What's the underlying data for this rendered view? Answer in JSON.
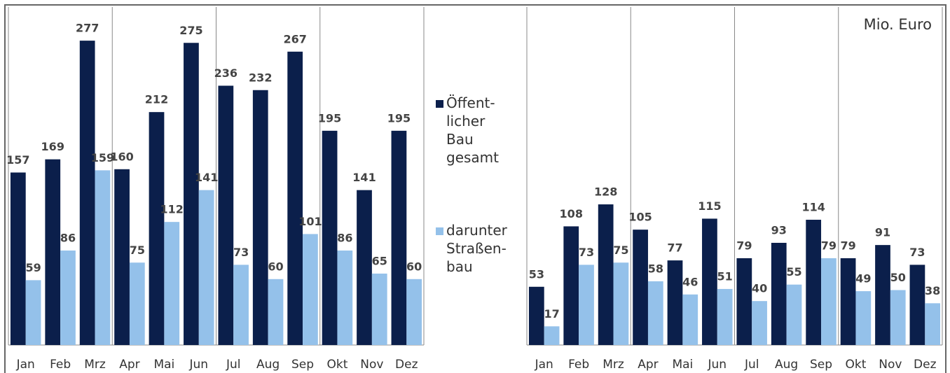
{
  "chart_data": [
    {
      "type": "bar",
      "categories": [
        "Jan",
        "Feb",
        "Mrz",
        "Apr",
        "Mai",
        "Jun",
        "Jul",
        "Aug",
        "Sep",
        "Okt",
        "Nov",
        "Dez"
      ],
      "series": [
        {
          "name": "Öffent-licher Bau gesamt",
          "color": "#0b1f4b",
          "values": [
            157,
            169,
            277,
            160,
            212,
            275,
            236,
            232,
            267,
            195,
            141,
            195
          ]
        },
        {
          "name": "darunter Straßen-bau",
          "color": "#94c1ea",
          "values": [
            59,
            86,
            159,
            75,
            112,
            141,
            73,
            60,
            101,
            86,
            65,
            60
          ]
        }
      ],
      "ylim": [
        0,
        300
      ]
    },
    {
      "type": "bar",
      "unit": "Mio. Euro",
      "categories": [
        "Jan",
        "Feb",
        "Mrz",
        "Apr",
        "Mai",
        "Jun",
        "Jul",
        "Aug",
        "Sep",
        "Okt",
        "Nov",
        "Dez"
      ],
      "series": [
        {
          "color": "#0b1f4b",
          "values": [
            53,
            108,
            128,
            105,
            77,
            115,
            79,
            93,
            114,
            79,
            91,
            73
          ]
        },
        {
          "color": "#94c1ea",
          "values": [
            17,
            73,
            75,
            58,
            46,
            51,
            40,
            55,
            79,
            49,
            50,
            38
          ]
        }
      ],
      "ylim": [
        0,
        300
      ]
    }
  ]
}
